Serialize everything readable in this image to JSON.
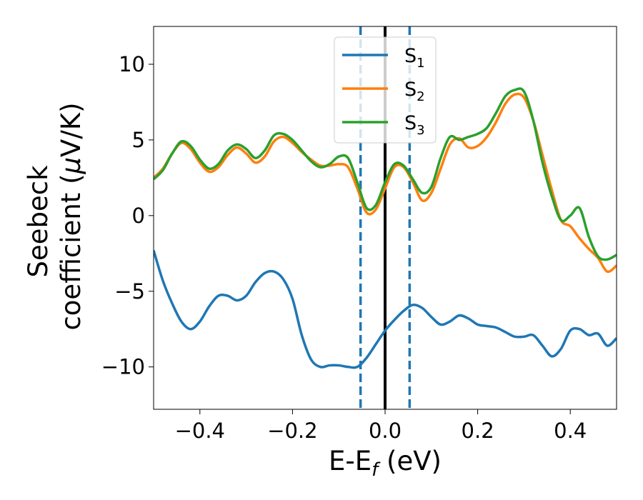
{
  "chart_data": {
    "type": "line",
    "title": "",
    "xlabel": {
      "main": "E-E",
      "sub": "f",
      "suffix": " (eV)"
    },
    "ylabel": {
      "line1": "Seebeck",
      "line2_text": "coefficient  (",
      "line2_mu": "μ",
      "line2_unit": "V/K)"
    },
    "xlim": [
      -0.5,
      0.5
    ],
    "ylim": [
      -12.8,
      12.5
    ],
    "xticks": [
      -0.4,
      -0.2,
      0.0,
      0.2,
      0.4
    ],
    "xtick_labels": [
      "−0.4",
      "−0.2",
      "0.0",
      "0.2",
      "0.4"
    ],
    "yticks": [
      -10,
      -5,
      0,
      5,
      10
    ],
    "ytick_labels": [
      "−10",
      "−5",
      "0",
      "5",
      "10"
    ],
    "grid": false,
    "legend_position": "top-center",
    "vlines": [
      {
        "x": -0.053,
        "style": "dashed",
        "color": "#1f77b4"
      },
      {
        "x": 0.0,
        "style": "solid",
        "color": "#000000"
      },
      {
        "x": 0.053,
        "style": "dashed",
        "color": "#1f77b4"
      }
    ],
    "series": [
      {
        "name": "S",
        "sub": "1",
        "color": "#1f77b4",
        "points": [
          [
            -0.5,
            -2.3
          ],
          [
            -0.48,
            -4.3
          ],
          [
            -0.46,
            -5.8
          ],
          [
            -0.44,
            -7.0
          ],
          [
            -0.42,
            -7.5
          ],
          [
            -0.4,
            -7.0
          ],
          [
            -0.38,
            -6.0
          ],
          [
            -0.36,
            -5.3
          ],
          [
            -0.34,
            -5.3
          ],
          [
            -0.32,
            -5.6
          ],
          [
            -0.3,
            -5.3
          ],
          [
            -0.28,
            -4.4
          ],
          [
            -0.26,
            -3.8
          ],
          [
            -0.24,
            -3.7
          ],
          [
            -0.22,
            -4.2
          ],
          [
            -0.2,
            -5.5
          ],
          [
            -0.18,
            -7.9
          ],
          [
            -0.16,
            -9.5
          ],
          [
            -0.14,
            -10.0
          ],
          [
            -0.12,
            -9.9
          ],
          [
            -0.1,
            -9.9
          ],
          [
            -0.08,
            -10.0
          ],
          [
            -0.06,
            -10.0
          ],
          [
            -0.04,
            -9.4
          ],
          [
            -0.02,
            -8.5
          ],
          [
            0.0,
            -7.6
          ],
          [
            0.02,
            -6.9
          ],
          [
            0.04,
            -6.3
          ],
          [
            0.06,
            -5.9
          ],
          [
            0.08,
            -6.1
          ],
          [
            0.1,
            -6.7
          ],
          [
            0.12,
            -7.2
          ],
          [
            0.14,
            -7.0
          ],
          [
            0.16,
            -6.6
          ],
          [
            0.18,
            -6.8
          ],
          [
            0.2,
            -7.2
          ],
          [
            0.22,
            -7.3
          ],
          [
            0.24,
            -7.4
          ],
          [
            0.26,
            -7.7
          ],
          [
            0.28,
            -8.0
          ],
          [
            0.3,
            -8.0
          ],
          [
            0.32,
            -7.9
          ],
          [
            0.34,
            -8.6
          ],
          [
            0.36,
            -9.3
          ],
          [
            0.38,
            -8.8
          ],
          [
            0.4,
            -7.6
          ],
          [
            0.42,
            -7.5
          ],
          [
            0.44,
            -7.9
          ],
          [
            0.46,
            -7.8
          ],
          [
            0.48,
            -8.6
          ],
          [
            0.5,
            -8.1
          ]
        ]
      },
      {
        "name": "S",
        "sub": "2",
        "color": "#ff7f0e",
        "points": [
          [
            -0.5,
            2.5
          ],
          [
            -0.48,
            3.1
          ],
          [
            -0.46,
            4.1
          ],
          [
            -0.44,
            4.8
          ],
          [
            -0.42,
            4.4
          ],
          [
            -0.4,
            3.5
          ],
          [
            -0.38,
            2.9
          ],
          [
            -0.36,
            3.2
          ],
          [
            -0.34,
            4.0
          ],
          [
            -0.32,
            4.5
          ],
          [
            -0.3,
            4.1
          ],
          [
            -0.28,
            3.5
          ],
          [
            -0.26,
            3.9
          ],
          [
            -0.24,
            4.9
          ],
          [
            -0.22,
            5.2
          ],
          [
            -0.2,
            4.8
          ],
          [
            -0.18,
            4.2
          ],
          [
            -0.16,
            3.7
          ],
          [
            -0.14,
            3.3
          ],
          [
            -0.12,
            3.3
          ],
          [
            -0.1,
            3.4
          ],
          [
            -0.08,
            3.2
          ],
          [
            -0.06,
            1.8
          ],
          [
            -0.04,
            0.2
          ],
          [
            -0.02,
            0.4
          ],
          [
            0.0,
            1.8
          ],
          [
            0.02,
            3.2
          ],
          [
            0.04,
            3.2
          ],
          [
            0.06,
            2.2
          ],
          [
            0.08,
            1.0
          ],
          [
            0.1,
            1.5
          ],
          [
            0.12,
            3.1
          ],
          [
            0.14,
            4.7
          ],
          [
            0.16,
            5.1
          ],
          [
            0.18,
            4.5
          ],
          [
            0.2,
            4.6
          ],
          [
            0.22,
            5.2
          ],
          [
            0.24,
            6.2
          ],
          [
            0.26,
            7.4
          ],
          [
            0.28,
            8.0
          ],
          [
            0.3,
            7.8
          ],
          [
            0.32,
            6.3
          ],
          [
            0.34,
            4.0
          ],
          [
            0.36,
            1.7
          ],
          [
            0.38,
            -0.3
          ],
          [
            0.4,
            -0.7
          ],
          [
            0.42,
            -1.5
          ],
          [
            0.44,
            -2.2
          ],
          [
            0.46,
            -2.8
          ],
          [
            0.48,
            -3.7
          ],
          [
            0.5,
            -3.3
          ]
        ]
      },
      {
        "name": "S",
        "sub": "3",
        "color": "#2ca02c",
        "points": [
          [
            -0.5,
            2.4
          ],
          [
            -0.48,
            3.0
          ],
          [
            -0.46,
            4.1
          ],
          [
            -0.44,
            4.9
          ],
          [
            -0.42,
            4.6
          ],
          [
            -0.4,
            3.7
          ],
          [
            -0.38,
            3.1
          ],
          [
            -0.36,
            3.4
          ],
          [
            -0.34,
            4.3
          ],
          [
            -0.32,
            4.7
          ],
          [
            -0.3,
            4.4
          ],
          [
            -0.28,
            3.8
          ],
          [
            -0.26,
            4.3
          ],
          [
            -0.24,
            5.3
          ],
          [
            -0.22,
            5.4
          ],
          [
            -0.2,
            5.0
          ],
          [
            -0.18,
            4.3
          ],
          [
            -0.16,
            3.6
          ],
          [
            -0.14,
            3.2
          ],
          [
            -0.12,
            3.4
          ],
          [
            -0.1,
            3.9
          ],
          [
            -0.08,
            3.8
          ],
          [
            -0.06,
            2.2
          ],
          [
            -0.04,
            0.5
          ],
          [
            -0.02,
            0.7
          ],
          [
            0.0,
            2.2
          ],
          [
            0.02,
            3.4
          ],
          [
            0.04,
            3.3
          ],
          [
            0.06,
            2.4
          ],
          [
            0.08,
            1.5
          ],
          [
            0.1,
            1.9
          ],
          [
            0.12,
            3.8
          ],
          [
            0.14,
            5.2
          ],
          [
            0.16,
            5.0
          ],
          [
            0.18,
            5.2
          ],
          [
            0.2,
            5.4
          ],
          [
            0.22,
            5.8
          ],
          [
            0.24,
            6.8
          ],
          [
            0.26,
            7.9
          ],
          [
            0.28,
            8.3
          ],
          [
            0.3,
            8.2
          ],
          [
            0.32,
            6.3
          ],
          [
            0.34,
            3.5
          ],
          [
            0.36,
            1.3
          ],
          [
            0.38,
            -0.3
          ],
          [
            0.4,
            0.0
          ],
          [
            0.42,
            0.5
          ],
          [
            0.44,
            -1.4
          ],
          [
            0.46,
            -2.7
          ],
          [
            0.48,
            -2.9
          ],
          [
            0.5,
            -2.6
          ]
        ]
      }
    ]
  }
}
